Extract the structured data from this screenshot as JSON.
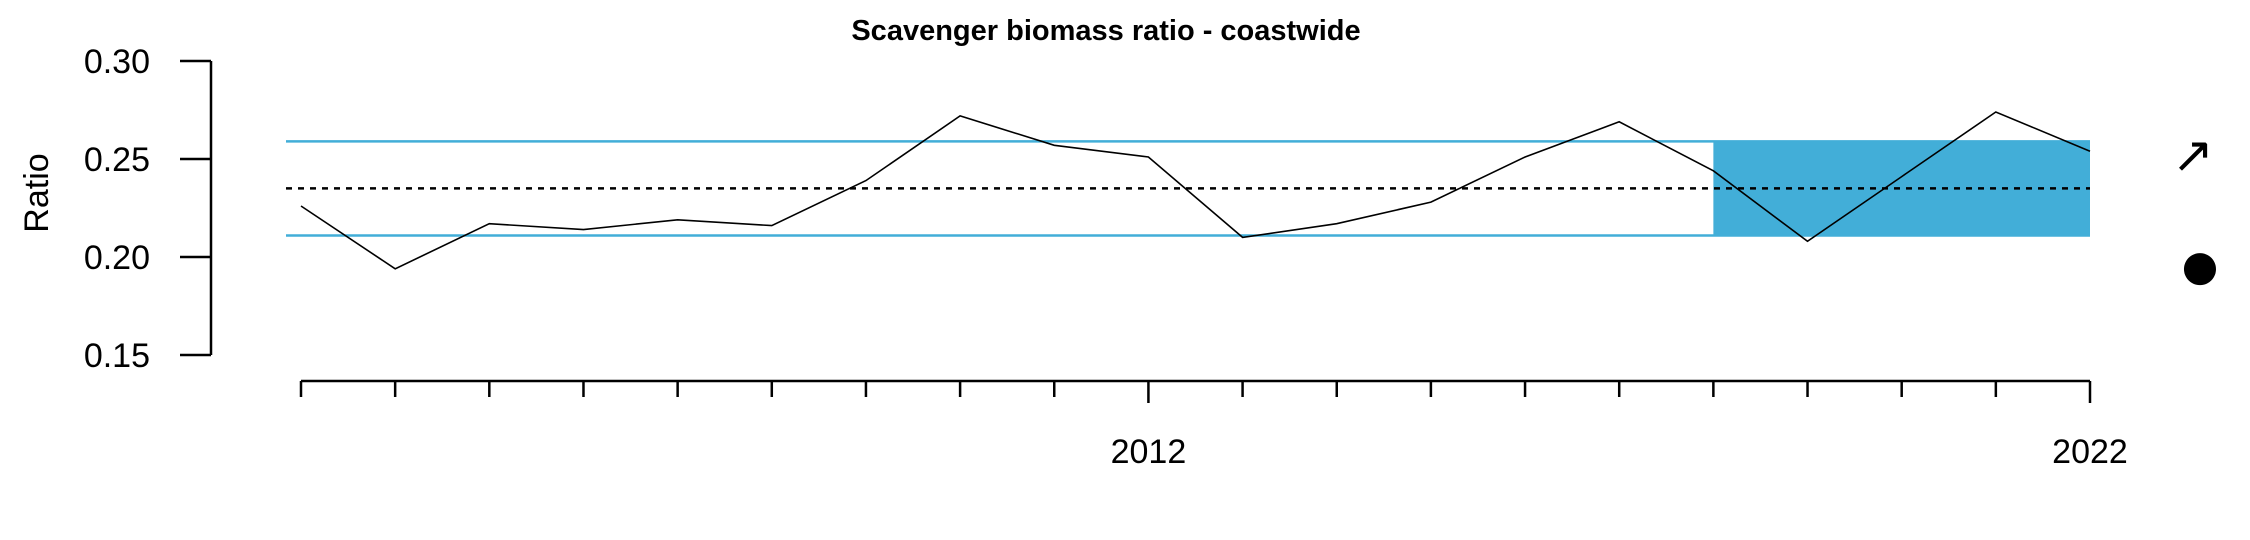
{
  "chart_data": {
    "type": "line",
    "title": "Scavenger biomass ratio - coastwide",
    "xlabel": "",
    "ylabel": "Ratio",
    "ylim": [
      0.15,
      0.3
    ],
    "yticks": [
      "0.15",
      "0.20",
      "0.25",
      "0.30"
    ],
    "xlim": [
      2003,
      2022
    ],
    "xtick_labels": [
      {
        "year": 2012,
        "label": "2012"
      },
      {
        "year": 2022,
        "label": "2022"
      }
    ],
    "x": [
      2003,
      2004,
      2005,
      2006,
      2007,
      2008,
      2009,
      2010,
      2011,
      2012,
      2013,
      2014,
      2015,
      2016,
      2017,
      2018,
      2019,
      2020,
      2021,
      2022
    ],
    "series": [
      {
        "values": [
          0.226,
          0.194,
          0.217,
          0.214,
          0.219,
          0.216,
          0.239,
          0.272,
          0.257,
          0.251,
          0.21,
          0.217,
          0.228,
          0.251,
          0.269,
          0.244,
          0.208,
          0.241,
          0.274,
          0.254
        ]
      }
    ],
    "mean": 0.235,
    "upper_sd": 0.259,
    "lower_sd": 0.211,
    "shaded_period": [
      2018,
      2022
    ],
    "trend_symbol": "↗",
    "status_symbol": "●",
    "colors": {
      "reference": "#42aed8",
      "shade": "#42aed8",
      "line": "#000000"
    }
  }
}
